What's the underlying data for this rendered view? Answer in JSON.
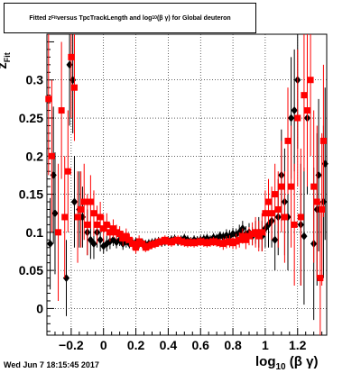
{
  "chart_data": {
    "type": "scatter",
    "title": {
      "pre": "Fitted  z",
      "pre_sub": "Fit",
      "mid": "  versus TpcTrackLength and log",
      "mid_sub": "10",
      "post": "(β γ) for Global deuteron"
    },
    "xlabel": {
      "main": "log",
      "sub": "10",
      "rest": "(β γ)"
    },
    "ylabel": {
      "main": "z",
      "sub": "Fit"
    },
    "xlim": [
      -0.35,
      1.38
    ],
    "ylim": [
      -0.035,
      0.36
    ],
    "xticks": [
      -0.2,
      0,
      0.2,
      0.4,
      0.6,
      0.8,
      1,
      1.2
    ],
    "xtick_labels": [
      "−0.2",
      "0",
      "0.2",
      "0.4",
      "0.6",
      "0.8",
      "1",
      "1.2"
    ],
    "yticks": [
      0,
      0.05,
      0.1,
      0.15,
      0.2,
      0.25,
      0.3
    ],
    "ytick_labels": [
      "0",
      "0.05",
      "0.1",
      "0.15",
      "0.2",
      "0.25",
      "0.3"
    ],
    "grid": true,
    "series": [
      {
        "color": "#000000",
        "marker": "diamond",
        "points": [
          [
            -0.33,
            0.085,
            0.06
          ],
          [
            -0.31,
            0.175,
            0.09
          ],
          [
            -0.3,
            0.125,
            0.08
          ],
          [
            -0.23,
            0.04,
            0.05
          ],
          [
            -0.21,
            0.32,
            0.08
          ],
          [
            -0.19,
            0.3,
            0.07
          ],
          [
            -0.18,
            0.14,
            0.06
          ],
          [
            -0.15,
            0.13,
            0.05
          ],
          [
            -0.13,
            0.12,
            0.04
          ],
          [
            -0.1,
            0.1,
            0.03
          ],
          [
            -0.08,
            0.09,
            0.025
          ],
          [
            -0.06,
            0.085,
            0.02
          ],
          [
            -0.04,
            0.1,
            0.02
          ],
          [
            -0.02,
            0.09,
            0.015
          ],
          [
            0.0,
            0.082,
            0.01
          ],
          [
            0.02,
            0.085,
            0.01
          ],
          [
            0.04,
            0.088,
            0.01
          ],
          [
            0.06,
            0.09,
            0.008
          ],
          [
            0.08,
            0.087,
            0.008
          ],
          [
            0.1,
            0.09,
            0.008
          ],
          [
            0.12,
            0.085,
            0.008
          ],
          [
            0.14,
            0.088,
            0.008
          ],
          [
            0.16,
            0.085,
            0.006
          ],
          [
            0.18,
            0.086,
            0.006
          ],
          [
            0.2,
            0.087,
            0.006
          ],
          [
            0.22,
            0.085,
            0.006
          ],
          [
            0.24,
            0.086,
            0.006
          ],
          [
            0.26,
            0.084,
            0.006
          ],
          [
            0.28,
            0.085,
            0.006
          ],
          [
            0.3,
            0.086,
            0.006
          ],
          [
            0.32,
            0.087,
            0.006
          ],
          [
            0.34,
            0.088,
            0.006
          ],
          [
            0.36,
            0.087,
            0.006
          ],
          [
            0.38,
            0.088,
            0.006
          ],
          [
            0.4,
            0.089,
            0.006
          ],
          [
            0.42,
            0.09,
            0.006
          ],
          [
            0.44,
            0.091,
            0.006
          ],
          [
            0.46,
            0.088,
            0.006
          ],
          [
            0.48,
            0.09,
            0.006
          ],
          [
            0.5,
            0.092,
            0.006
          ],
          [
            0.52,
            0.09,
            0.006
          ],
          [
            0.54,
            0.088,
            0.006
          ],
          [
            0.56,
            0.09,
            0.006
          ],
          [
            0.58,
            0.089,
            0.006
          ],
          [
            0.6,
            0.09,
            0.006
          ],
          [
            0.62,
            0.091,
            0.006
          ],
          [
            0.64,
            0.092,
            0.006
          ],
          [
            0.66,
            0.09,
            0.006
          ],
          [
            0.68,
            0.093,
            0.006
          ],
          [
            0.7,
            0.092,
            0.006
          ],
          [
            0.72,
            0.095,
            0.006
          ],
          [
            0.74,
            0.094,
            0.006
          ],
          [
            0.76,
            0.096,
            0.008
          ],
          [
            0.78,
            0.095,
            0.008
          ],
          [
            0.8,
            0.098,
            0.008
          ],
          [
            0.82,
            0.097,
            0.008
          ],
          [
            0.84,
            0.1,
            0.01
          ],
          [
            0.86,
            0.105,
            0.01
          ],
          [
            0.88,
            0.098,
            0.01
          ],
          [
            0.9,
            0.1,
            0.012
          ],
          [
            0.92,
            0.095,
            0.012
          ],
          [
            0.94,
            0.1,
            0.015
          ],
          [
            0.96,
            0.1,
            0.02
          ],
          [
            0.98,
            0.095,
            0.02
          ],
          [
            1.0,
            0.105,
            0.025
          ],
          [
            1.02,
            0.11,
            0.03
          ],
          [
            1.04,
            0.115,
            0.035
          ],
          [
            1.06,
            0.09,
            0.04
          ],
          [
            1.08,
            0.12,
            0.05
          ],
          [
            1.1,
            0.175,
            0.06
          ],
          [
            1.12,
            0.14,
            0.07
          ],
          [
            1.14,
            0.12,
            0.07
          ],
          [
            1.16,
            0.25,
            0.08
          ],
          [
            1.18,
            0.26,
            0.08
          ],
          [
            1.2,
            0.3,
            0.09
          ],
          [
            1.22,
            0.11,
            0.08
          ],
          [
            1.24,
            0.095,
            0.09
          ],
          [
            1.26,
            0.25,
            0.1
          ],
          [
            1.3,
            0.085,
            0.1
          ],
          [
            1.32,
            0.13,
            0.1
          ],
          [
            1.33,
            0.175,
            0.1
          ],
          [
            1.36,
            0.14,
            0.1
          ],
          [
            1.37,
            0.19,
            0.1
          ]
        ]
      },
      {
        "color": "#ff0000",
        "marker": "square",
        "points": [
          [
            -0.34,
            0.275,
            0.1
          ],
          [
            -0.32,
            0.2,
            0.1
          ],
          [
            -0.28,
            0.1,
            0.09
          ],
          [
            -0.26,
            0.26,
            0.09
          ],
          [
            -0.24,
            0.12,
            0.08
          ],
          [
            -0.22,
            0.18,
            0.08
          ],
          [
            -0.2,
            0.33,
            0.08
          ],
          [
            -0.18,
            0.29,
            0.07
          ],
          [
            -0.16,
            0.12,
            0.06
          ],
          [
            -0.14,
            0.13,
            0.05
          ],
          [
            -0.12,
            0.14,
            0.05
          ],
          [
            -0.1,
            0.11,
            0.04
          ],
          [
            -0.08,
            0.14,
            0.035
          ],
          [
            -0.06,
            0.125,
            0.03
          ],
          [
            -0.04,
            0.11,
            0.025
          ],
          [
            -0.02,
            0.12,
            0.02
          ],
          [
            0.0,
            0.105,
            0.018
          ],
          [
            0.02,
            0.11,
            0.015
          ],
          [
            0.04,
            0.1,
            0.012
          ],
          [
            0.06,
            0.105,
            0.012
          ],
          [
            0.08,
            0.1,
            0.01
          ],
          [
            0.1,
            0.098,
            0.01
          ],
          [
            0.12,
            0.092,
            0.01
          ],
          [
            0.14,
            0.095,
            0.01
          ],
          [
            0.16,
            0.09,
            0.008
          ],
          [
            0.18,
            0.085,
            0.008
          ],
          [
            0.2,
            0.08,
            0.008
          ],
          [
            0.22,
            0.088,
            0.008
          ],
          [
            0.24,
            0.085,
            0.006
          ],
          [
            0.26,
            0.08,
            0.006
          ],
          [
            0.28,
            0.082,
            0.006
          ],
          [
            0.3,
            0.084,
            0.006
          ],
          [
            0.32,
            0.085,
            0.006
          ],
          [
            0.34,
            0.087,
            0.006
          ],
          [
            0.36,
            0.088,
            0.006
          ],
          [
            0.38,
            0.09,
            0.006
          ],
          [
            0.4,
            0.088,
            0.006
          ],
          [
            0.42,
            0.087,
            0.006
          ],
          [
            0.44,
            0.089,
            0.006
          ],
          [
            0.46,
            0.09,
            0.006
          ],
          [
            0.48,
            0.088,
            0.006
          ],
          [
            0.5,
            0.087,
            0.006
          ],
          [
            0.52,
            0.086,
            0.006
          ],
          [
            0.54,
            0.087,
            0.006
          ],
          [
            0.56,
            0.086,
            0.006
          ],
          [
            0.58,
            0.087,
            0.006
          ],
          [
            0.6,
            0.088,
            0.006
          ],
          [
            0.62,
            0.087,
            0.006
          ],
          [
            0.64,
            0.086,
            0.006
          ],
          [
            0.66,
            0.087,
            0.006
          ],
          [
            0.68,
            0.088,
            0.006
          ],
          [
            0.7,
            0.087,
            0.006
          ],
          [
            0.72,
            0.086,
            0.006
          ],
          [
            0.74,
            0.085,
            0.008
          ],
          [
            0.76,
            0.087,
            0.008
          ],
          [
            0.78,
            0.088,
            0.008
          ],
          [
            0.8,
            0.086,
            0.008
          ],
          [
            0.82,
            0.088,
            0.01
          ],
          [
            0.84,
            0.09,
            0.01
          ],
          [
            0.86,
            0.095,
            0.01
          ],
          [
            0.88,
            0.09,
            0.012
          ],
          [
            0.9,
            0.095,
            0.012
          ],
          [
            0.92,
            0.098,
            0.015
          ],
          [
            0.94,
            0.1,
            0.02
          ],
          [
            0.96,
            0.095,
            0.02
          ],
          [
            0.98,
            0.1,
            0.025
          ],
          [
            1.0,
            0.125,
            0.03
          ],
          [
            1.02,
            0.14,
            0.03
          ],
          [
            1.04,
            0.125,
            0.035
          ],
          [
            1.06,
            0.15,
            0.04
          ],
          [
            1.08,
            0.13,
            0.05
          ],
          [
            1.1,
            0.16,
            0.06
          ],
          [
            1.12,
            0.12,
            0.06
          ],
          [
            1.14,
            0.22,
            0.07
          ],
          [
            1.16,
            0.16,
            0.08
          ],
          [
            1.18,
            0.11,
            0.08
          ],
          [
            1.2,
            0.25,
            0.09
          ],
          [
            1.22,
            0.12,
            0.09
          ],
          [
            1.24,
            0.28,
            0.1
          ],
          [
            1.26,
            0.26,
            0.1
          ],
          [
            1.28,
            0.3,
            0.1
          ],
          [
            1.3,
            0.16,
            0.1
          ],
          [
            1.32,
            0.14,
            0.1
          ],
          [
            1.34,
            0.04,
            0.1
          ],
          [
            1.35,
            0.13,
            0.1
          ],
          [
            1.36,
            0.22,
            0.1
          ]
        ]
      }
    ]
  },
  "footer": {
    "timestamp": "Wed Jun  7 18:15:45 2017"
  }
}
